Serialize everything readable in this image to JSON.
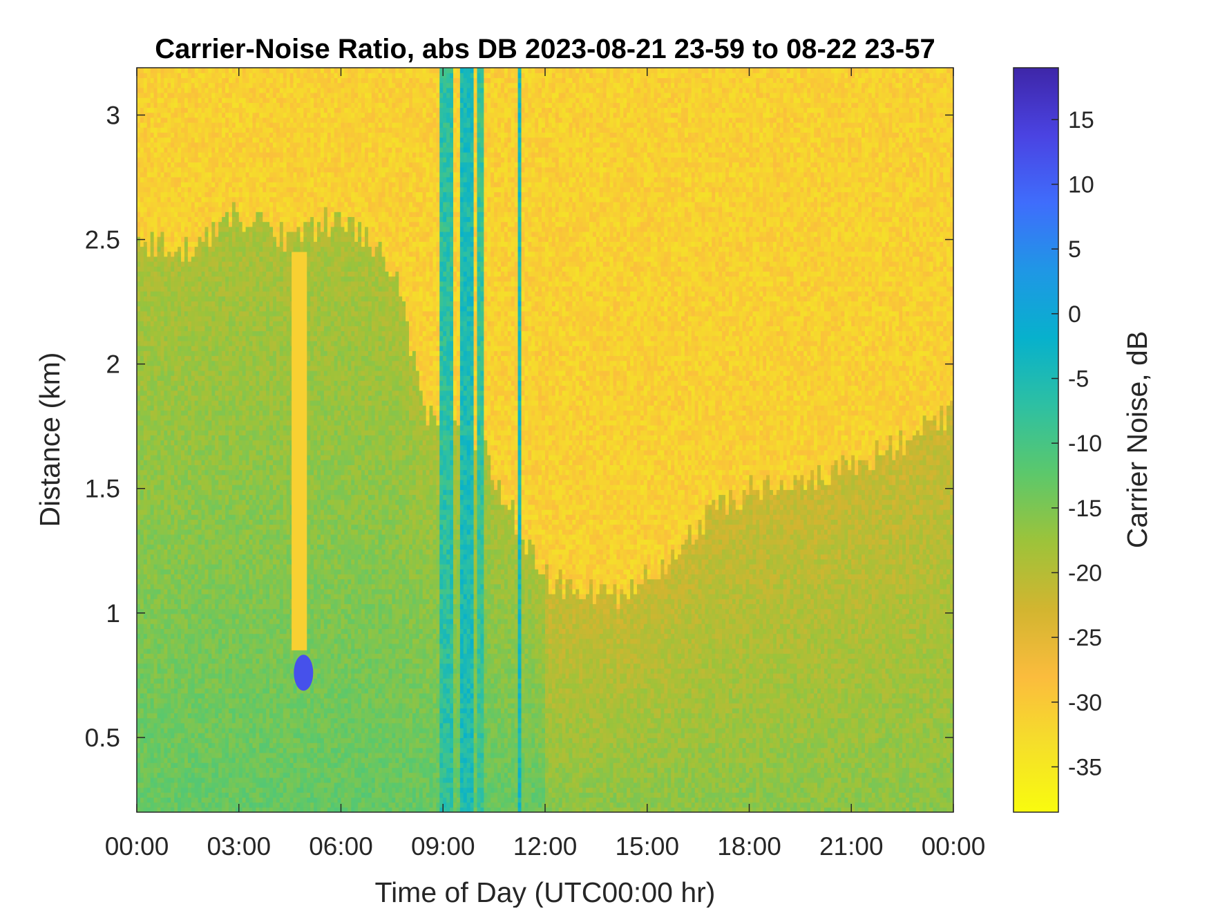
{
  "chart_data": {
    "type": "heatmap",
    "title": "Carrier-Noise Ratio, abs DB 2023-08-21 23-59 to 08-22 23-57",
    "xlabel": "Time of Day (UTC00:00 hr)",
    "ylabel": "Distance (km)",
    "x_range_hours": [
      0,
      24
    ],
    "x_tick_values_hours": [
      0,
      3,
      6,
      9,
      12,
      15,
      18,
      21,
      24
    ],
    "x_tick_labels": [
      "00:00",
      "03:00",
      "06:00",
      "09:00",
      "12:00",
      "15:00",
      "18:00",
      "21:00",
      "00:00"
    ],
    "y_range_km": [
      0.2,
      3.19
    ],
    "y_ticks": [
      0.5,
      1,
      1.5,
      2,
      2.5,
      3
    ],
    "y_tick_labels": [
      "0.5",
      "1",
      "1.5",
      "2",
      "2.5",
      "3"
    ],
    "colorbar": {
      "label": "Carrier Noise, dB",
      "range": [
        -38.5,
        19
      ],
      "ticks": [
        15,
        10,
        5,
        0,
        -5,
        -10,
        -15,
        -20,
        -25,
        -30,
        -35
      ],
      "tick_labels": [
        "15",
        "10",
        "5",
        "0",
        "-5",
        "-10",
        "-15",
        "-20",
        "-25",
        "-30",
        "-35"
      ],
      "colormap": "parula-reversed",
      "colors_high_to_low": [
        "#3e26a8",
        "#4a43e2",
        "#3f6dfc",
        "#1f97e5",
        "#07b1cc",
        "#2ec0a2",
        "#5cc86b",
        "#9dc33a",
        "#d2b530",
        "#fbbc3d",
        "#f5df2a",
        "#f9fb0e"
      ]
    },
    "regions": {
      "boundary_layer_top_km": [
        {
          "t": 0,
          "z": 2.5
        },
        {
          "t": 1.5,
          "z": 2.45
        },
        {
          "t": 3,
          "z": 2.6
        },
        {
          "t": 4.5,
          "z": 2.5
        },
        {
          "t": 6,
          "z": 2.6
        },
        {
          "t": 7.5,
          "z": 2.4
        },
        {
          "t": 8.5,
          "z": 1.8
        },
        {
          "t": 10,
          "z": 1.7
        },
        {
          "t": 12,
          "z": 1.15
        },
        {
          "t": 14,
          "z": 1.05
        },
        {
          "t": 15,
          "z": 1.15
        },
        {
          "t": 16.5,
          "z": 1.35
        },
        {
          "t": 18,
          "z": 1.5
        },
        {
          "t": 20,
          "z": 1.55
        },
        {
          "t": 22,
          "z": 1.65
        },
        {
          "t": 24,
          "z": 1.8
        }
      ],
      "low_snr_value_db": -31,
      "boundary_layer_value_db": -13,
      "cloud_echo_value_db": 12,
      "full_column_events": [
        {
          "t_start": 8.9,
          "t_end": 9.3,
          "value_db": -7
        },
        {
          "t_start": 9.55,
          "t_end": 9.9,
          "value_db": -5
        },
        {
          "t_start": 10.05,
          "t_end": 10.2,
          "value_db": -8
        },
        {
          "t_start": 11.2,
          "t_end": 11.35,
          "value_db": -4
        }
      ]
    }
  }
}
